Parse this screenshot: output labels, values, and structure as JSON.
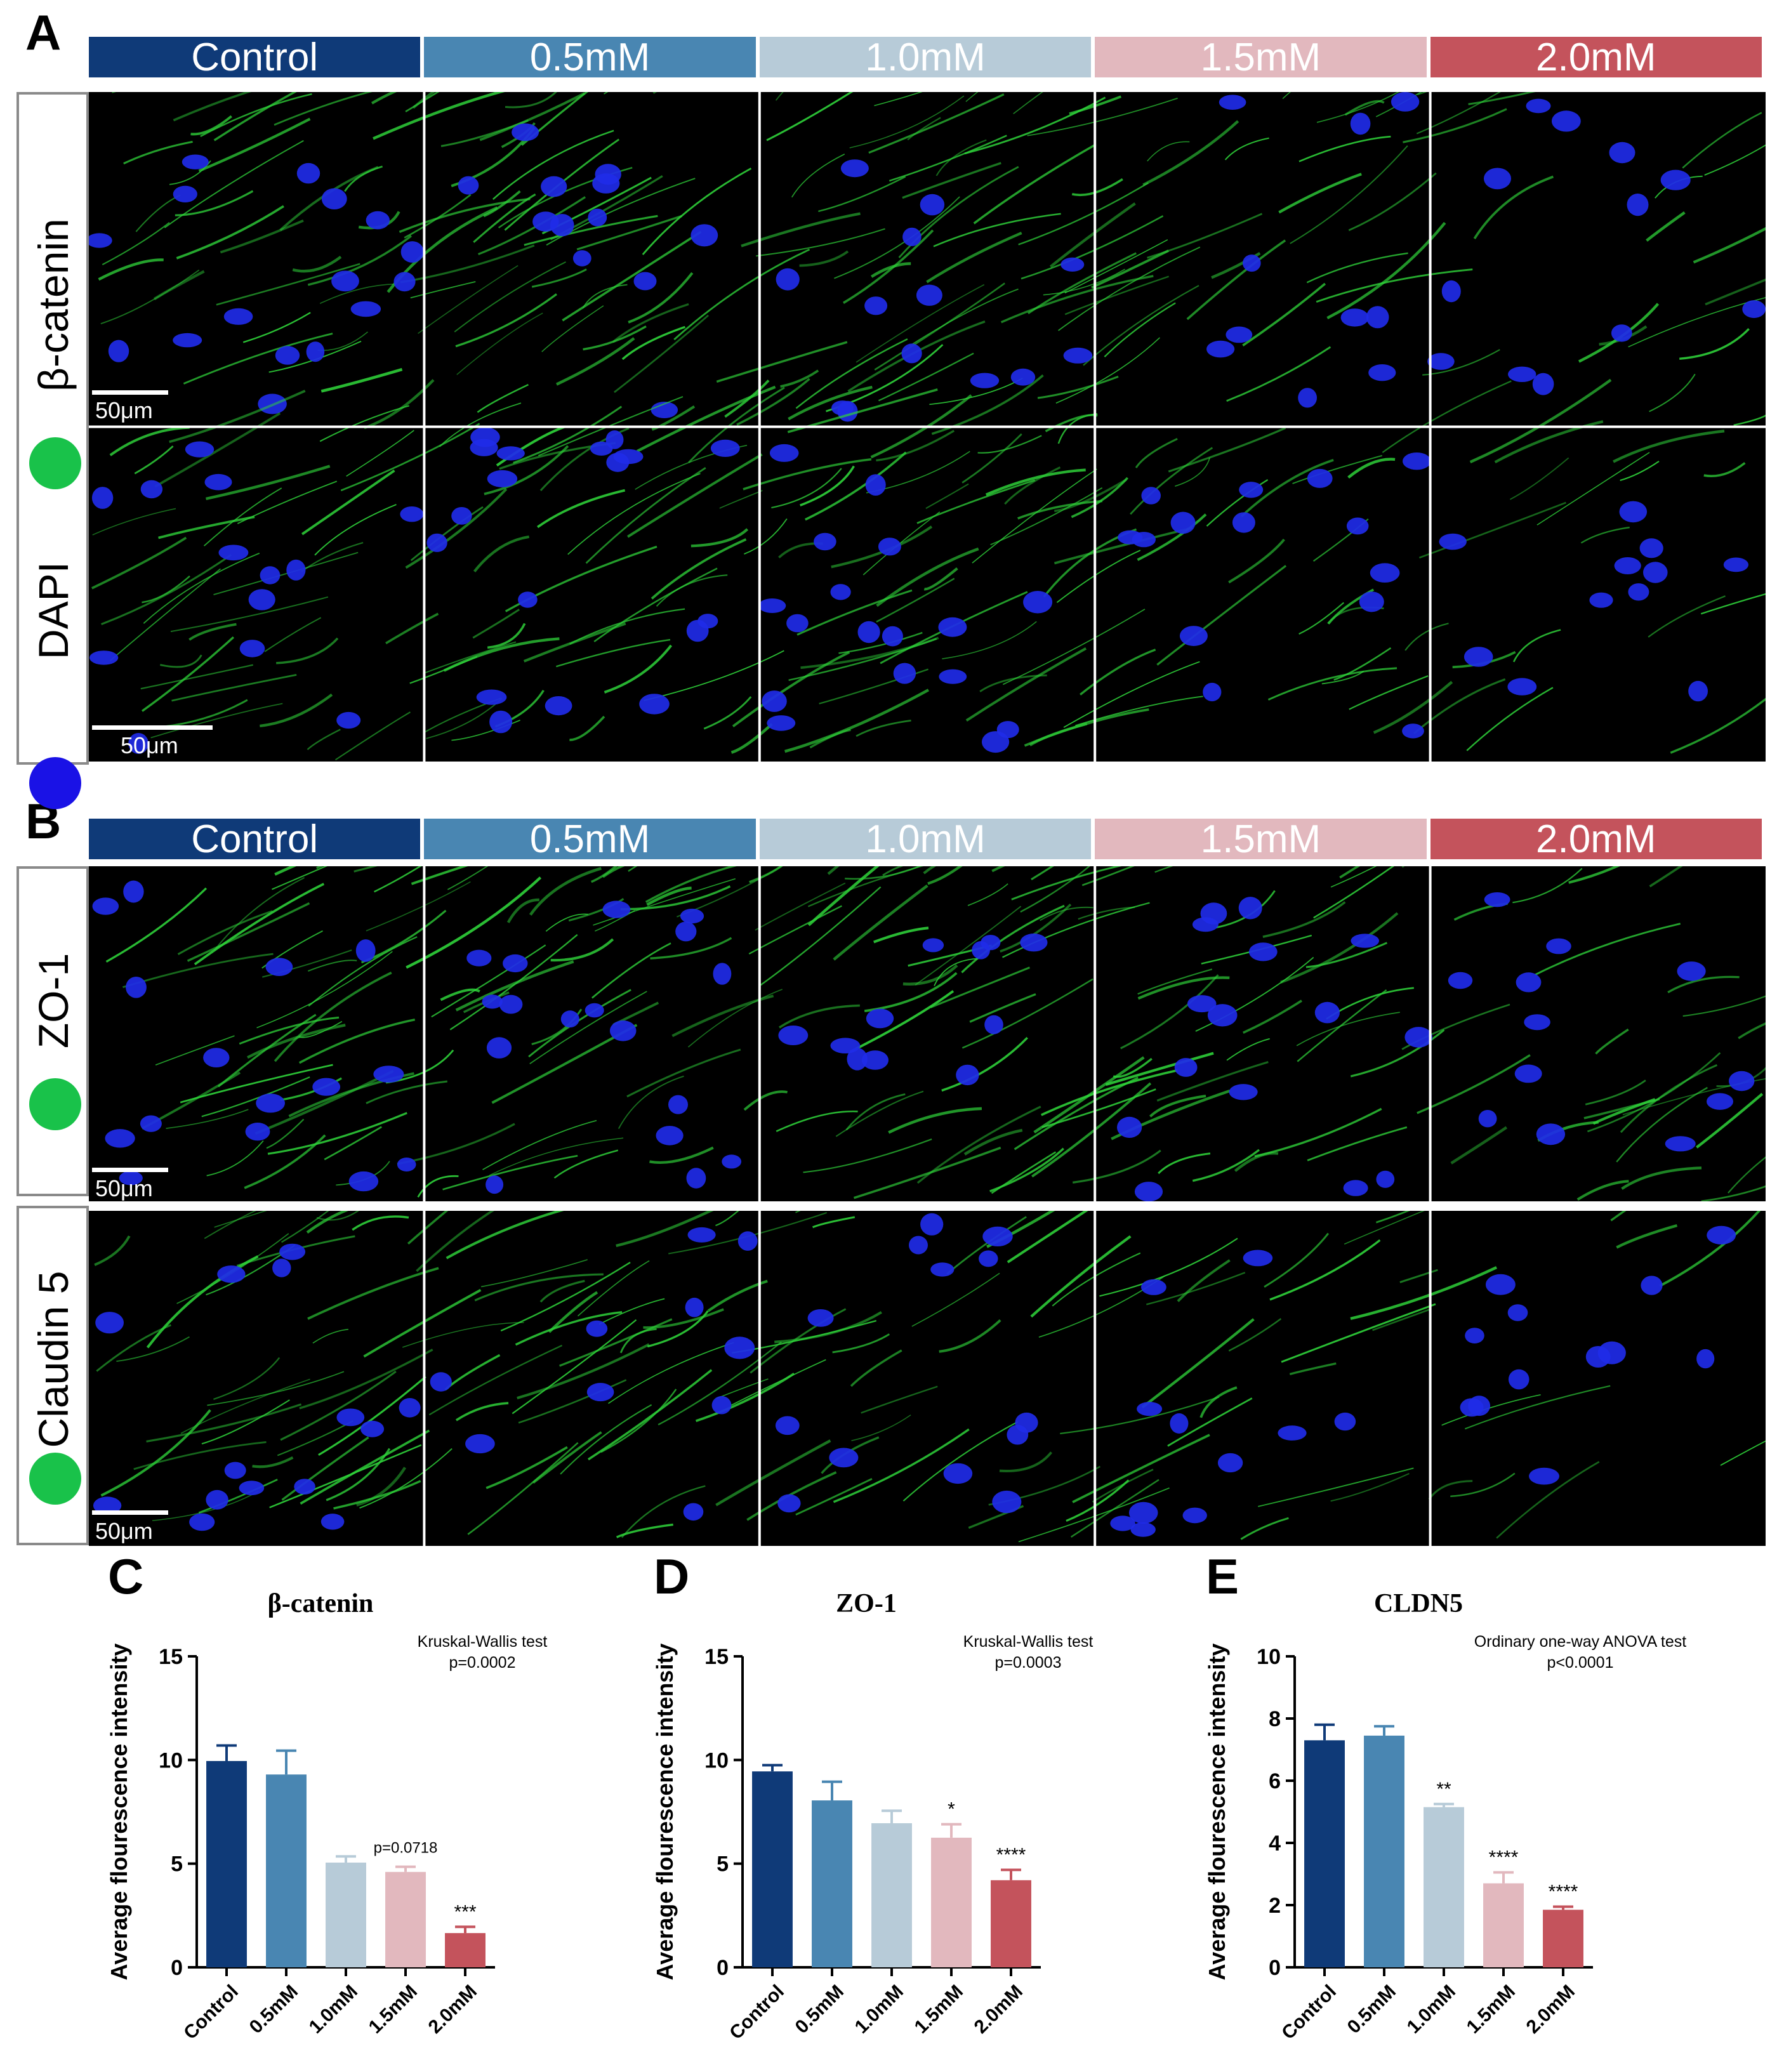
{
  "panels": {
    "A": "A",
    "B": "B",
    "C": "C",
    "D": "D",
    "E": "E"
  },
  "groups": [
    "Control",
    "0.5mM",
    "1.0mM",
    "1.5mM",
    "2.0mM"
  ],
  "group_colors": [
    "#0f3a78",
    "#4986b2",
    "#b7cbd8",
    "#e2b8be",
    "#c4535c"
  ],
  "panel_a": {
    "row_labels": [
      "β-catenin",
      "DAPI"
    ],
    "dot_colors": [
      "#19c24a",
      "#1a12e6"
    ],
    "scale_labels": [
      "50μm",
      "50μm"
    ]
  },
  "panel_b": {
    "row_labels": [
      "ZO-1",
      "Claudin 5"
    ],
    "dot_colors": [
      "#19c24a",
      "#19c24a"
    ],
    "scale_labels": [
      "50μm",
      "50μm"
    ]
  },
  "chart_data": [
    {
      "type": "bar",
      "panel": "C",
      "title": "β-catenin",
      "ylabel": "Average flourescence intensity",
      "categories": [
        "Control",
        "0.5mM",
        "1.0mM",
        "1.5mM",
        "2.0mM"
      ],
      "values": [
        9.95,
        9.3,
        5.05,
        4.6,
        1.65
      ],
      "errors": [
        0.75,
        1.15,
        0.3,
        0.25,
        0.3
      ],
      "significance": [
        "",
        "",
        "",
        "p=0.0718",
        "***"
      ],
      "ylim": [
        0,
        15
      ],
      "yticks": [
        0,
        5,
        10,
        15
      ],
      "test_name": "Kruskal-Wallis test",
      "test_p": "p=0.0002"
    },
    {
      "type": "bar",
      "panel": "D",
      "title": "ZO-1",
      "ylabel": "Average flourescence intensity",
      "categories": [
        "Control",
        "0.5mM",
        "1.0mM",
        "1.5mM",
        "2.0mM"
      ],
      "values": [
        9.45,
        8.05,
        6.95,
        6.25,
        4.2
      ],
      "errors": [
        0.3,
        0.9,
        0.6,
        0.65,
        0.5
      ],
      "significance": [
        "",
        "",
        "",
        "*",
        "****"
      ],
      "ylim": [
        0,
        15
      ],
      "yticks": [
        0,
        5,
        10,
        15
      ],
      "test_name": "Kruskal-Wallis test",
      "test_p": "p=0.0003"
    },
    {
      "type": "bar",
      "panel": "E",
      "title": "CLDN5",
      "ylabel": "Average flourescence intensity",
      "categories": [
        "Control",
        "0.5mM",
        "1.0mM",
        "1.5mM",
        "2.0mM"
      ],
      "values": [
        7.3,
        7.45,
        5.15,
        2.7,
        1.85
      ],
      "errors": [
        0.5,
        0.3,
        0.1,
        0.35,
        0.1
      ],
      "significance": [
        "",
        "",
        "**",
        "****",
        "****"
      ],
      "ylim": [
        0,
        10
      ],
      "yticks": [
        0,
        2,
        4,
        6,
        8,
        10
      ],
      "test_name": "Ordinary one-way ANOVA test",
      "test_p": "p<0.0001"
    }
  ]
}
